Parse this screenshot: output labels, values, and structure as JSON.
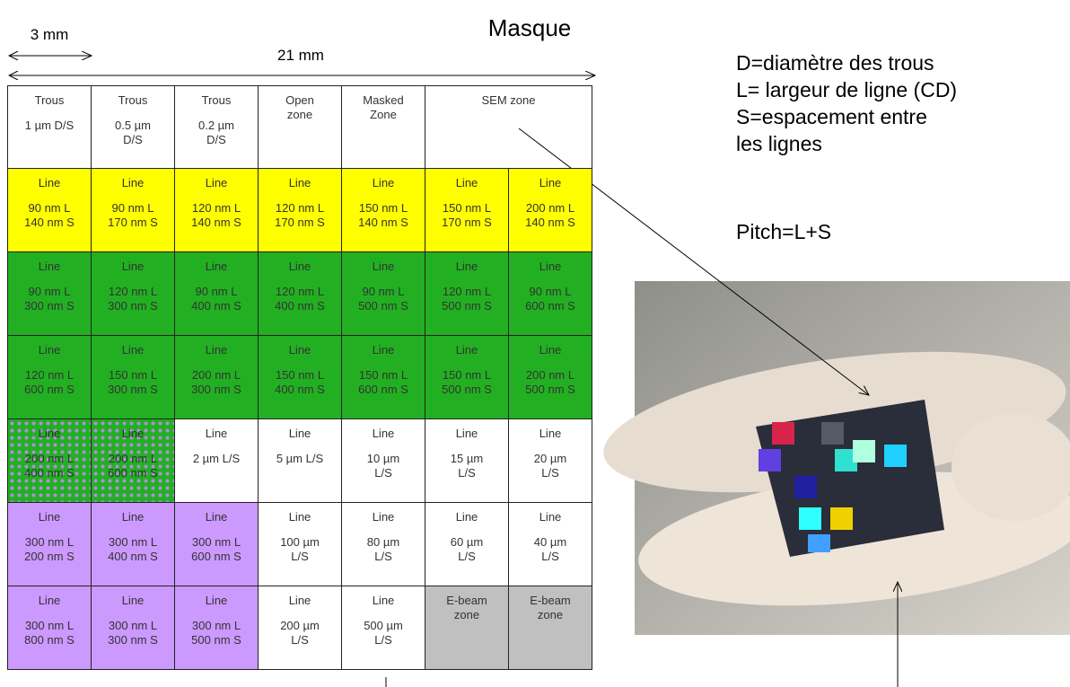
{
  "header": {
    "title": "Masque",
    "dimensions": [
      "3 mm",
      "21 mm"
    ]
  },
  "legend": {
    "lines": [
      "D=diamètre des trous",
      "L= largeur de ligne (CD)",
      "S=espacement entre",
      "les lignes"
    ],
    "pitch": "Pitch=L+S"
  },
  "table": {
    "header": [
      {
        "title": "Trous",
        "lines": [
          "1 µm D/S"
        ]
      },
      {
        "title": "Trous",
        "lines": [
          "0.5 µm",
          "D/S"
        ]
      },
      {
        "title": "Trous",
        "lines": [
          "0.2 µm",
          "D/S"
        ]
      },
      {
        "lines": [
          "Open",
          "zone"
        ]
      },
      {
        "lines": [
          "Masked",
          "Zone"
        ]
      },
      {
        "lines": [
          "SEM zone"
        ]
      }
    ],
    "rows": [
      [
        {
          "fill": "yellow",
          "title": "Line",
          "lines": [
            "90 nm L",
            "140 nm S"
          ]
        },
        {
          "fill": "yellow",
          "title": "Line",
          "lines": [
            "90 nm L",
            "170 nm S"
          ]
        },
        {
          "fill": "yellow",
          "title": "Line",
          "lines": [
            "120 nm L",
            "140 nm S"
          ]
        },
        {
          "fill": "yellow",
          "title": "Line",
          "lines": [
            "120 nm L",
            "170 nm S"
          ]
        },
        {
          "fill": "yellow",
          "title": "Line",
          "lines": [
            "150 nm L",
            "140 nm S"
          ]
        },
        {
          "fill": "yellow",
          "title": "Line",
          "lines": [
            "150 nm L",
            "170 nm S"
          ]
        },
        {
          "fill": "yellow",
          "title": "Line",
          "lines": [
            "200 nm L",
            "140 nm S"
          ]
        }
      ],
      [
        {
          "fill": "green",
          "title": "Line",
          "lines": [
            "90 nm L",
            "300 nm S"
          ]
        },
        {
          "fill": "green",
          "title": "Line",
          "lines": [
            "120 nm L",
            "300 nm S"
          ]
        },
        {
          "fill": "green",
          "title": "Line",
          "lines": [
            "90 nm L",
            "400 nm S"
          ]
        },
        {
          "fill": "green",
          "title": "Line",
          "lines": [
            "120 nm L",
            "400 nm S"
          ]
        },
        {
          "fill": "green",
          "title": "Line",
          "lines": [
            "90 nm L",
            "500 nm S"
          ]
        },
        {
          "fill": "green",
          "title": "Line",
          "lines": [
            "120 nm L",
            "500 nm S"
          ]
        },
        {
          "fill": "green",
          "title": "Line",
          "lines": [
            "90 nm L",
            "600 nm S"
          ]
        }
      ],
      [
        {
          "fill": "green",
          "title": "Line",
          "lines": [
            "120 nm L",
            "600 nm S"
          ]
        },
        {
          "fill": "green",
          "title": "Line",
          "lines": [
            "150 nm L",
            "300 nm S"
          ]
        },
        {
          "fill": "green",
          "title": "Line",
          "lines": [
            "200 nm L",
            "300 nm S"
          ]
        },
        {
          "fill": "green",
          "title": "Line",
          "lines": [
            "150 nm L",
            "400 nm S"
          ]
        },
        {
          "fill": "green",
          "title": "Line",
          "lines": [
            "150 nm L",
            "600 nm S"
          ]
        },
        {
          "fill": "green",
          "title": "Line",
          "lines": [
            "150 nm L",
            "500 nm S"
          ]
        },
        {
          "fill": "green",
          "title": "Line",
          "lines": [
            "200 nm L",
            "500 nm S"
          ]
        }
      ],
      [
        {
          "fill": "checker",
          "title": "Line",
          "lines": [
            "200 nm L",
            "400 nm S"
          ]
        },
        {
          "fill": "checker",
          "title": "Line",
          "lines": [
            "200 nm L",
            "600 nm S"
          ]
        },
        {
          "fill": "white",
          "title": "Line",
          "lines": [
            "2 µm L/S"
          ]
        },
        {
          "fill": "white",
          "title": "Line",
          "lines": [
            "5 µm L/S"
          ]
        },
        {
          "fill": "white",
          "title": "Line",
          "lines": [
            "10 µm",
            "L/S"
          ]
        },
        {
          "fill": "white",
          "title": "Line",
          "lines": [
            "15 µm",
            "L/S"
          ]
        },
        {
          "fill": "white",
          "title": "Line",
          "lines": [
            "20 µm",
            "L/S"
          ]
        }
      ],
      [
        {
          "fill": "purple",
          "title": "Line",
          "lines": [
            "300 nm L",
            "200 nm S"
          ]
        },
        {
          "fill": "purple",
          "title": "Line",
          "lines": [
            "300 nm L",
            "400 nm S"
          ]
        },
        {
          "fill": "purple",
          "title": "Line",
          "lines": [
            "300 nm L",
            "600 nm S"
          ]
        },
        {
          "fill": "white",
          "title": "Line",
          "lines": [
            "100 µm",
            "L/S"
          ]
        },
        {
          "fill": "white",
          "title": "Line",
          "lines": [
            "80 µm",
            "L/S"
          ]
        },
        {
          "fill": "white",
          "title": "Line",
          "lines": [
            "60 µm",
            "L/S"
          ]
        },
        {
          "fill": "white",
          "title": "Line",
          "lines": [
            "40 µm",
            "L/S"
          ]
        }
      ],
      [
        {
          "fill": "purple",
          "title": "Line",
          "lines": [
            "300 nm L",
            "800 nm S"
          ]
        },
        {
          "fill": "purple",
          "title": "Line",
          "lines": [
            "300 nm L",
            "300 nm S"
          ]
        },
        {
          "fill": "purple",
          "title": "Line",
          "lines": [
            "300 nm L",
            "500 nm S"
          ]
        },
        {
          "fill": "white",
          "title": "Line",
          "lines": [
            "200 µm",
            "L/S"
          ]
        },
        {
          "fill": "white",
          "title": "Line",
          "lines": [
            "500 µm",
            "L/S"
          ]
        },
        {
          "fill": "gray",
          "lines": [
            "E-beam",
            "zone"
          ]
        },
        {
          "fill": "gray",
          "lines": [
            "E-beam",
            "zone"
          ]
        }
      ]
    ]
  }
}
